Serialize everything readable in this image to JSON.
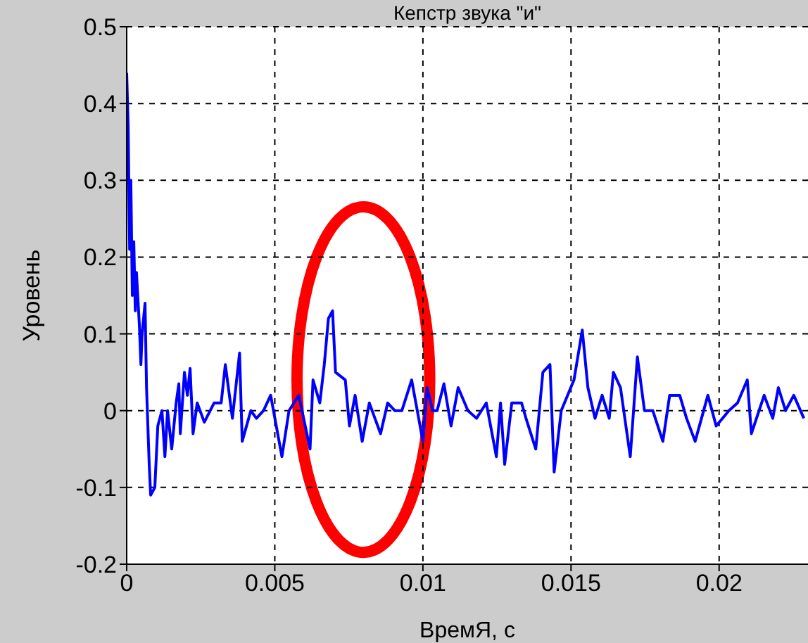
{
  "chart_data": {
    "type": "line",
    "title": "Кепстр звука \"и\"",
    "xlabel": "ВремЯ, с",
    "ylabel": "Уровень",
    "x": [
      0,
      5e-05,
      0.0001,
      0.00014,
      0.00019,
      0.00024,
      0.00029,
      0.00033,
      0.00043,
      0.00048,
      0.00052,
      0.00062,
      0.00067,
      0.00076,
      0.00081,
      0.00095,
      0.00105,
      0.00119,
      0.00129,
      0.00138,
      0.00152,
      0.00167,
      0.00176,
      0.00181,
      0.00195,
      0.00205,
      0.00214,
      0.00224,
      0.00238,
      0.00262,
      0.00295,
      0.00319,
      0.00333,
      0.00357,
      0.00381,
      0.0039,
      0.00419,
      0.00438,
      0.00462,
      0.00486,
      0.00524,
      0.00548,
      0.00581,
      0.00619,
      0.00629,
      0.00652,
      0.00667,
      0.00681,
      0.00695,
      0.00705,
      0.00738,
      0.00752,
      0.00771,
      0.00795,
      0.00819,
      0.00838,
      0.00857,
      0.00881,
      0.00905,
      0.00929,
      0.00962,
      0.01,
      0.01014,
      0.01033,
      0.01048,
      0.01071,
      0.01095,
      0.01119,
      0.01152,
      0.01181,
      0.01214,
      0.01248,
      0.01262,
      0.01276,
      0.013,
      0.01333,
      0.01348,
      0.01381,
      0.01405,
      0.01429,
      0.01443,
      0.01467,
      0.0151,
      0.01538,
      0.01557,
      0.01581,
      0.01605,
      0.01629,
      0.01643,
      0.01667,
      0.017,
      0.01724,
      0.01748,
      0.01776,
      0.0181,
      0.01833,
      0.01867,
      0.0189,
      0.01919,
      0.01962,
      0.0199,
      0.02033,
      0.02062,
      0.02095,
      0.02109,
      0.02152,
      0.02181,
      0.022,
      0.02224,
      0.02252,
      0.02286
    ],
    "series": [
      {
        "color": "#0000ff",
        "values": [
          0.44,
          0.37,
          0.21,
          0.3,
          0.15,
          0.22,
          0.13,
          0.18,
          0.11,
          0.06,
          0.1,
          0.14,
          0.03,
          -0.07,
          -0.11,
          -0.1,
          -0.02,
          0,
          -0.06,
          0,
          -0.05,
          0.01,
          0.035,
          -0.03,
          0.05,
          0.02,
          0.055,
          -0.03,
          0.01,
          -0.015,
          0.01,
          0.01,
          0.06,
          -0.01,
          0.075,
          -0.04,
          0,
          -0.01,
          0,
          0.02,
          -0.06,
          0,
          0.02,
          -0.05,
          0.04,
          0.01,
          0.06,
          0.12,
          0.13,
          0.05,
          0.04,
          -0.02,
          0.02,
          -0.04,
          0.01,
          -0.01,
          -0.03,
          0.01,
          0,
          0,
          0.04,
          -0.04,
          0.03,
          0,
          0,
          0.035,
          -0.02,
          0.03,
          0,
          -0.01,
          0.01,
          -0.06,
          0.01,
          -0.07,
          0.01,
          0.01,
          -0.01,
          -0.05,
          0.05,
          0.06,
          -0.08,
          0,
          0.04,
          0.105,
          0.03,
          -0.01,
          0.02,
          -0.01,
          0.05,
          0.03,
          -0.06,
          0.07,
          0,
          0,
          -0.04,
          0.02,
          0.02,
          -0.01,
          -0.04,
          0.02,
          -0.02,
          0,
          0.01,
          0.04,
          -0.03,
          0.02,
          -0.01,
          0.03,
          0,
          0.02,
          -0.01
        ]
      }
    ],
    "xlim": [
      0,
      0.023
    ],
    "xticks": [
      0,
      0.005,
      0.01,
      0.015,
      0.02
    ],
    "ylim": [
      -0.2,
      0.5
    ],
    "yticks": [
      -0.2,
      -0.1,
      0,
      0.1,
      0.2,
      0.3,
      0.4,
      0.5
    ],
    "grid": true,
    "line_style": "solid",
    "marker": "none"
  }
}
